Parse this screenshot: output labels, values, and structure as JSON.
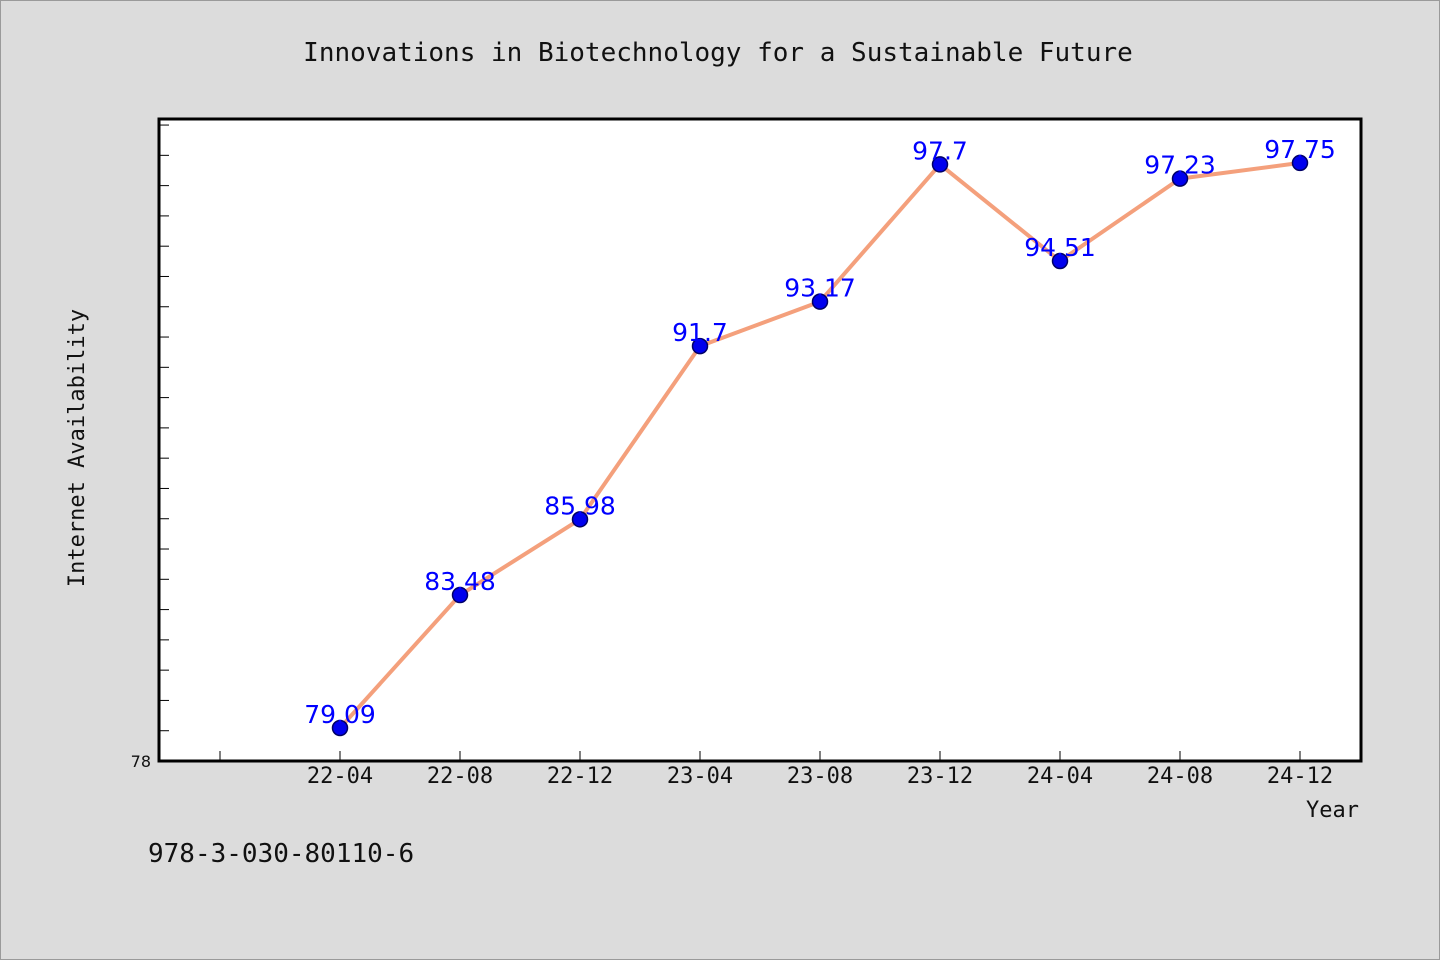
{
  "chart_data": {
    "type": "line",
    "title": "Innovations in Biotechnology for a Sustainable Future",
    "xlabel": "Year",
    "ylabel": "Internet Availability",
    "categories": [
      "22-04",
      "22-08",
      "22-12",
      "23-04",
      "23-08",
      "23-12",
      "24-04",
      "24-08",
      "24-12"
    ],
    "series": [
      {
        "values": [
          79.09,
          83.48,
          85.98,
          91.7,
          93.17,
          97.7,
          94.51,
          97.23,
          97.75
        ]
      }
    ],
    "data_labels": [
      "79.09",
      "83.48",
      "85.98",
      "91.7",
      "93.17",
      "97.7",
      "94.51",
      "97.23",
      "97.75"
    ],
    "ytick_labels": [
      "78"
    ],
    "ylim": [
      78,
      99.2
    ],
    "grid": false,
    "legend": "none",
    "colors": {
      "line": "#f4a07c",
      "marker": "#0000ee",
      "marker_edge": "#000066",
      "data_label": "#0000ff",
      "plot_bg": "#ffffff",
      "page_bg": "#dcdcdc"
    }
  },
  "footer": {
    "isbn": "978-3-030-80110-6"
  }
}
